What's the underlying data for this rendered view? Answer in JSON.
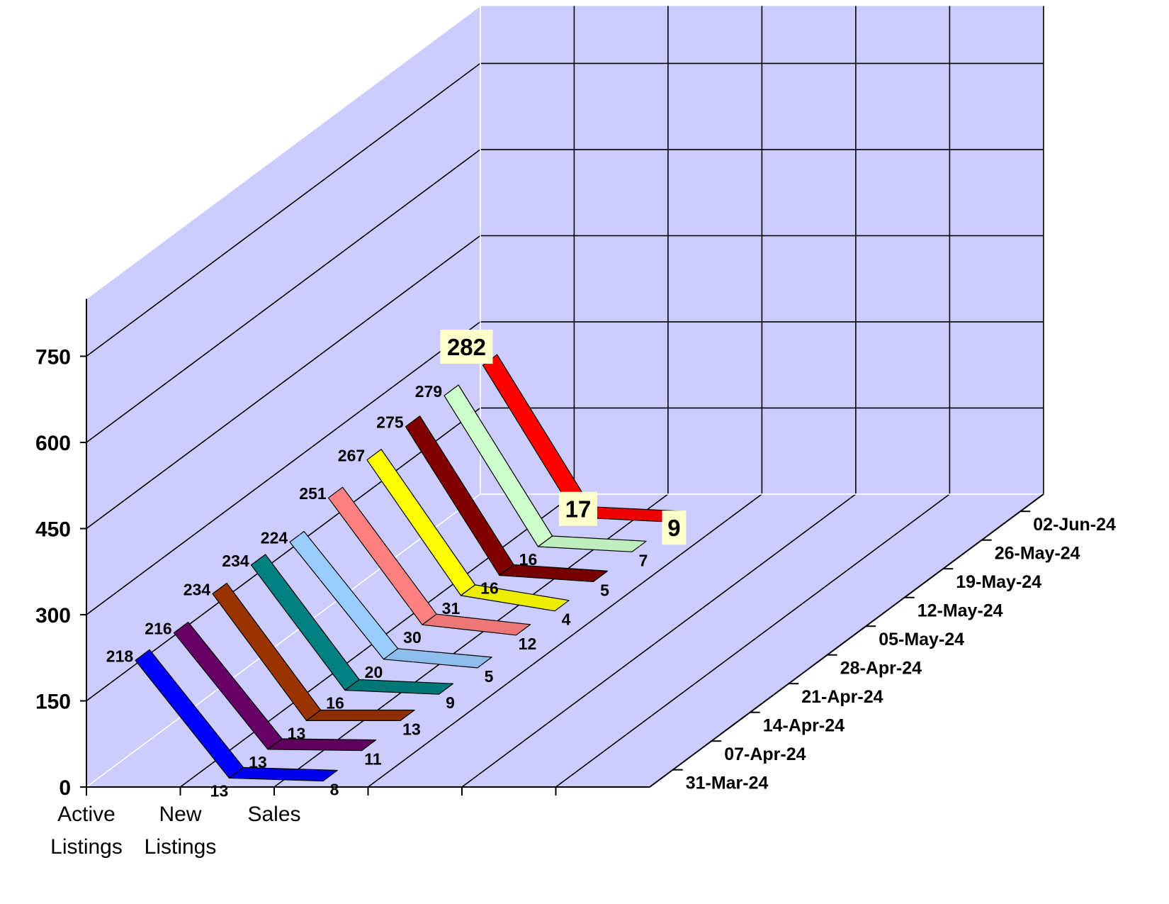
{
  "chart_data": {
    "type": "line",
    "title": "",
    "xlabel": "",
    "ylabel": "",
    "ylim": [
      0,
      850
    ],
    "yticks": [
      0,
      150,
      300,
      450,
      600,
      750
    ],
    "grid": true,
    "legend": "none",
    "categories": [
      "Active Listings",
      "New Listings",
      "Sales"
    ],
    "category_labels": [
      [
        "Active",
        "Listings"
      ],
      [
        "New",
        "Listings"
      ],
      [
        "Sales"
      ]
    ],
    "series": [
      {
        "name": "31-Mar-24",
        "values": [
          218,
          13,
          8
        ],
        "color": "#0000ff"
      },
      {
        "name": "07-Apr-24",
        "values": [
          216,
          13,
          11
        ],
        "color": "#660066"
      },
      {
        "name": "14-Apr-24",
        "values": [
          234,
          13,
          13
        ],
        "color": "#993300"
      },
      {
        "name": "21-Apr-24",
        "values": [
          234,
          16,
          9
        ],
        "color": "#008080"
      },
      {
        "name": "28-Apr-24",
        "values": [
          224,
          20,
          5
        ],
        "color": "#99ccff"
      },
      {
        "name": "05-May-24",
        "values": [
          251,
          30,
          12
        ],
        "color": "#ff8080"
      },
      {
        "name": "12-May-24",
        "values": [
          267,
          31,
          4
        ],
        "color": "#ffff00"
      },
      {
        "name": "19-May-24",
        "values": [
          275,
          16,
          5
        ],
        "color": "#800000"
      },
      {
        "name": "26-May-24",
        "values": [
          279,
          16,
          7
        ],
        "color": "#ccffcc"
      },
      {
        "name": "02-Jun-24",
        "values": [
          282,
          17,
          9
        ],
        "color": "#ff0000"
      }
    ],
    "colors": {
      "wall": "#ccccff",
      "label_box": "#ffffcc",
      "grid": "#000000"
    }
  }
}
